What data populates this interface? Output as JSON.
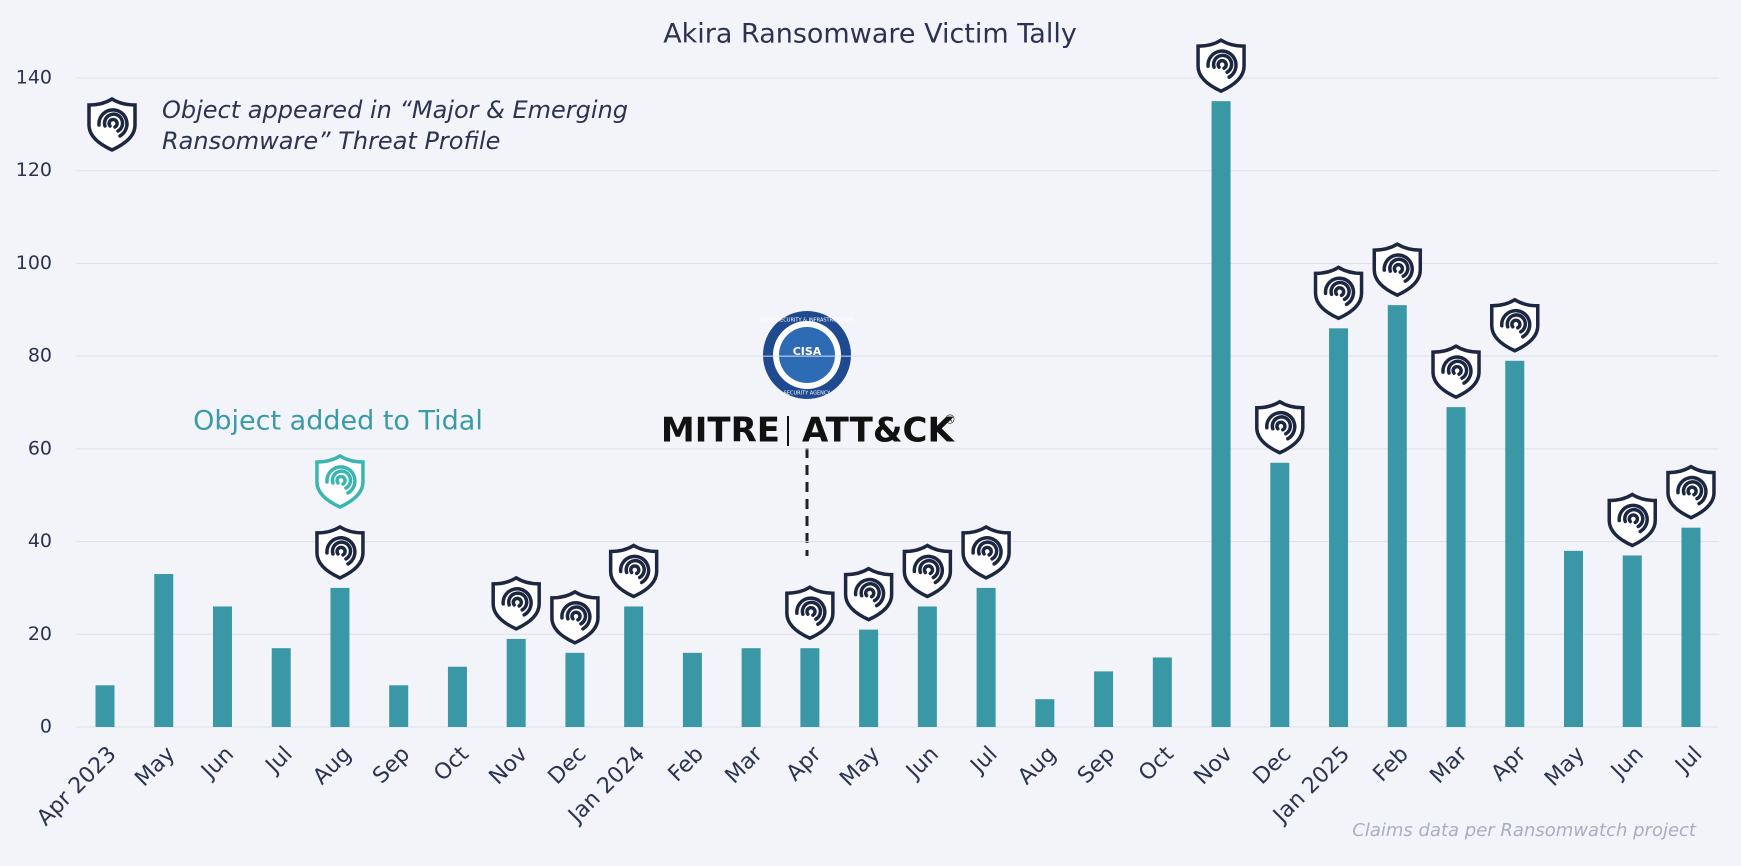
{
  "chart_data": {
    "type": "bar",
    "title": "Akira Ransomware Victim Tally",
    "categories": [
      "Apr 2023",
      "May",
      "Jun",
      "Jul",
      "Aug",
      "Sep",
      "Oct",
      "Nov",
      "Dec",
      "Jan 2024",
      "Feb",
      "Mar",
      "Apr",
      "May",
      "Jun",
      "Jul",
      "Aug",
      "Sep",
      "Oct",
      "Nov",
      "Dec",
      "Jan 2025",
      "Feb",
      "Mar",
      "Apr",
      "May",
      "Jun",
      "Jul"
    ],
    "values": [
      9,
      33,
      26,
      17,
      30,
      9,
      13,
      19,
      16,
      26,
      16,
      17,
      17,
      21,
      26,
      30,
      6,
      12,
      15,
      135,
      57,
      86,
      91,
      69,
      79,
      38,
      37,
      43
    ],
    "color": "#3a98a6",
    "ylim": [
      0,
      140
    ],
    "yticks": [
      0,
      20,
      40,
      60,
      80,
      100,
      120,
      140
    ],
    "grid": true,
    "threat_profile_icon": [
      false,
      false,
      false,
      false,
      true,
      false,
      false,
      true,
      true,
      true,
      false,
      false,
      true,
      true,
      true,
      true,
      false,
      false,
      false,
      true,
      true,
      true,
      true,
      true,
      true,
      false,
      true,
      true
    ],
    "legend": [
      "Object appeared in “Major & Emerging",
      "Ransomware” Threat Profile"
    ],
    "annotations": {
      "tidal": "Object added to Tidal",
      "mitre": "MITRE",
      "attack": "ATT&CK",
      "registered": "®",
      "cisa": "CISA",
      "cisa_ring_top": "CYBERSECURITY & INFRASTRUCTURE",
      "cisa_ring_bottom": "SECURITY AGENCY"
    },
    "footnote": "Claims data per Ransomwatch project"
  }
}
